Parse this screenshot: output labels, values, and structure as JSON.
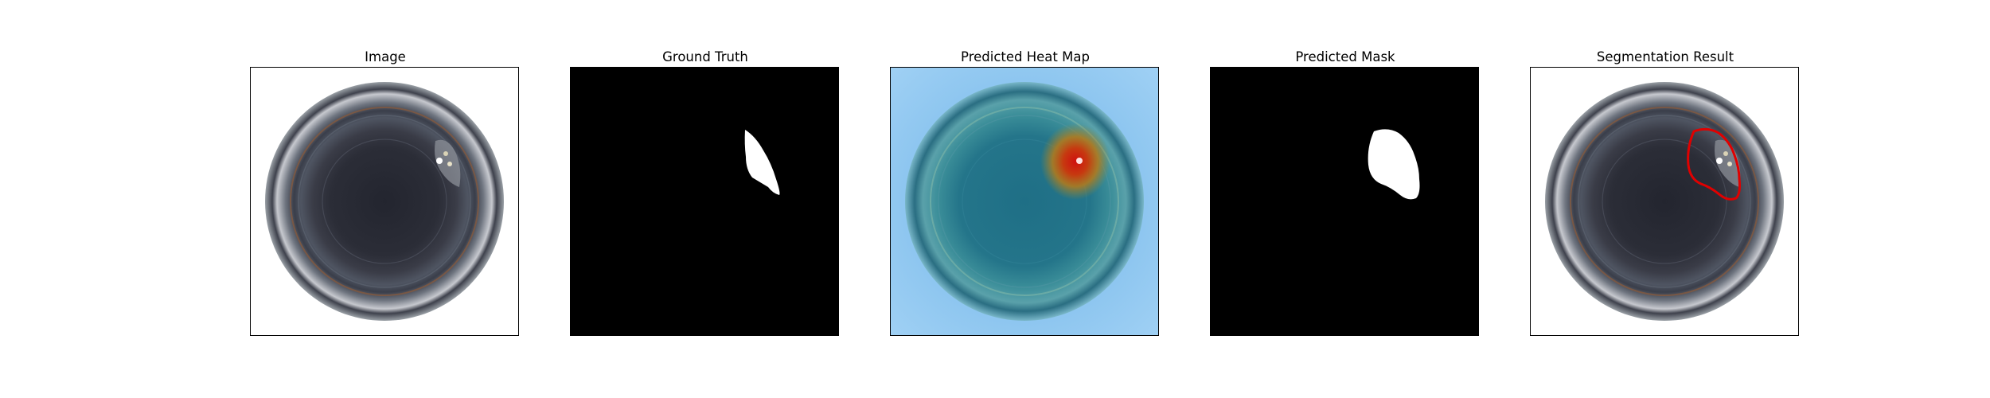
{
  "panels": [
    {
      "title": "Image"
    },
    {
      "title": "Ground Truth"
    },
    {
      "title": "Predicted Heat Map"
    },
    {
      "title": "Predicted Mask"
    },
    {
      "title": "Segmentation Result"
    }
  ],
  "colors": {
    "mask_background": "#000000",
    "mask_foreground": "#ffffff",
    "contour": "#e00000",
    "heatmap_low": "#8ec9f2",
    "heatmap_high": "#d01010"
  }
}
